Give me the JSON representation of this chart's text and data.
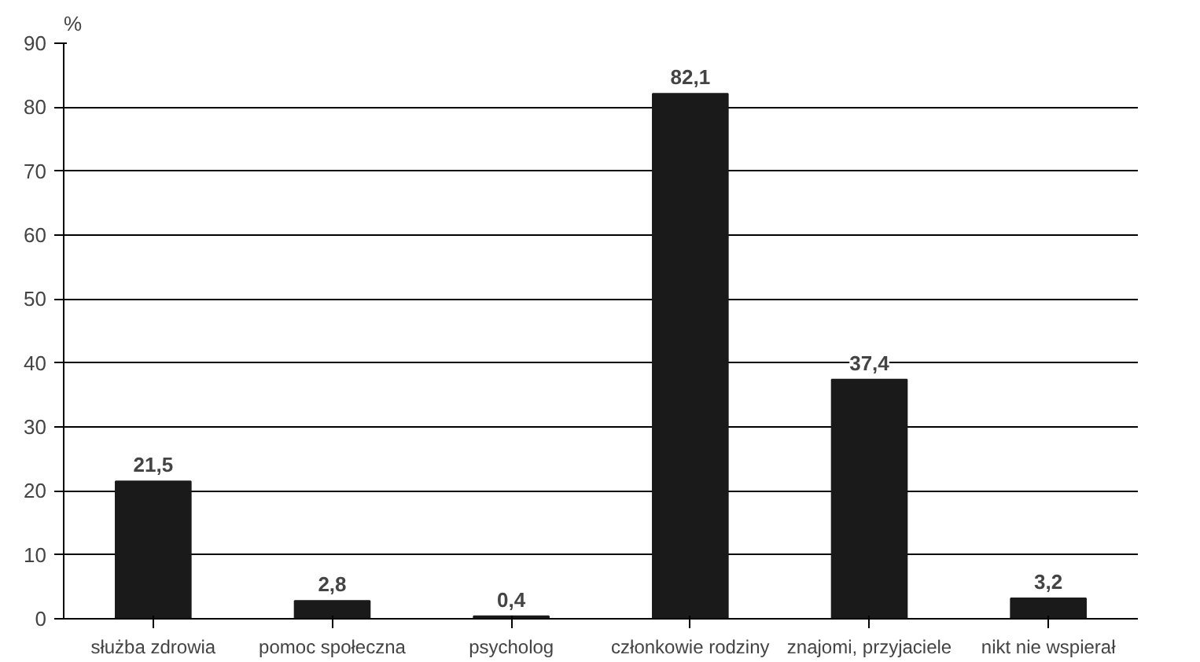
{
  "chart_data": {
    "type": "bar",
    "ylabel": "%",
    "categories": [
      "służba zdrowia",
      "pomoc społeczna",
      "psycholog",
      "członkowie rodziny",
      "znajomi, przyjaciele",
      "nikt nie wspierał"
    ],
    "values": [
      21.5,
      2.8,
      0.4,
      82.1,
      37.4,
      3.2
    ],
    "value_labels": [
      "21,5",
      "2,8",
      "0,4",
      "82,1",
      "37,4",
      "3,2"
    ],
    "color": "#1a1a1a",
    "ylim": [
      0,
      90
    ],
    "yticks": [
      0,
      10,
      20,
      30,
      40,
      50,
      60,
      70,
      80,
      90
    ],
    "grid": "y"
  }
}
